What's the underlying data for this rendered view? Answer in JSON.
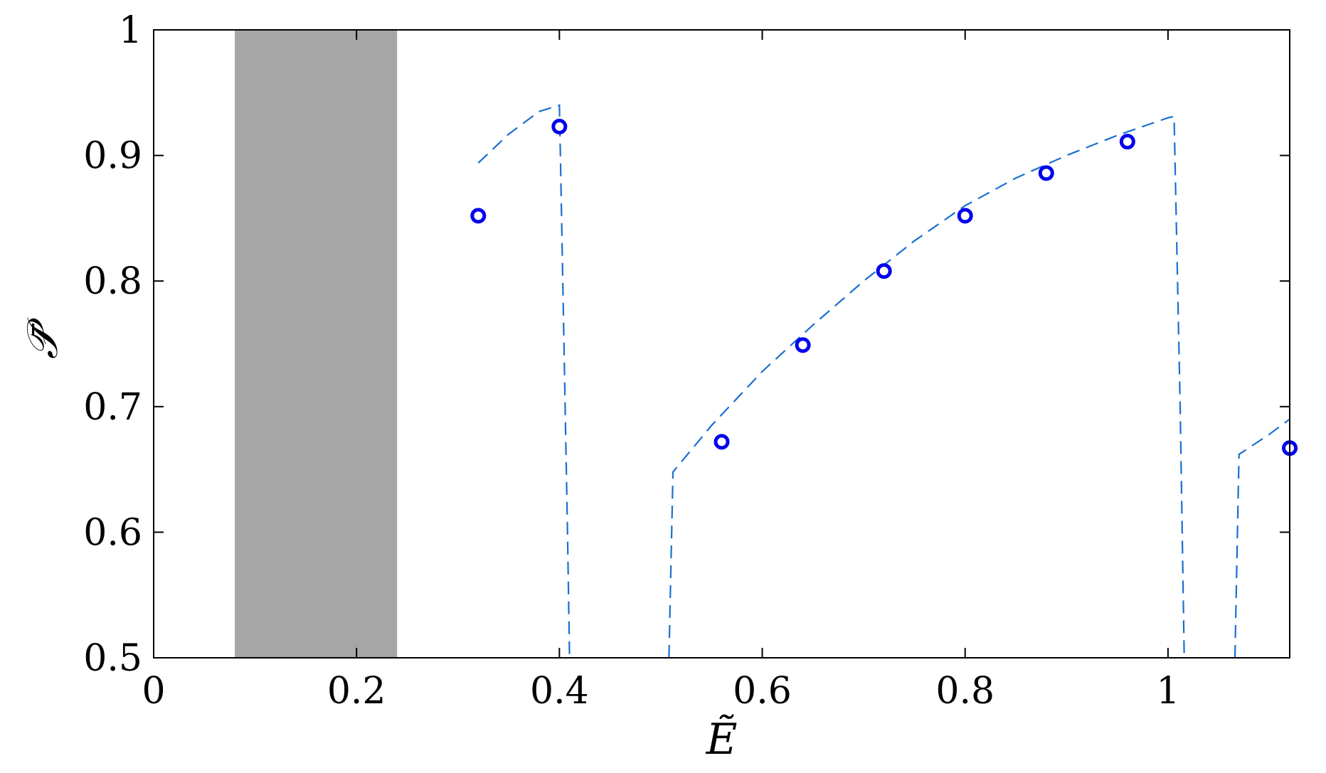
{
  "chart_data": {
    "type": "scatter",
    "title": "",
    "xlabel": "Ẽ",
    "ylabel": "𝒫̄",
    "xlim": [
      0,
      1.12
    ],
    "ylim": [
      0.5,
      1
    ],
    "xticks": [
      0,
      0.2,
      0.4,
      0.6,
      0.8,
      1
    ],
    "xtick_labels": [
      "0",
      "0.2",
      "0.4",
      "0.6",
      "0.8",
      "1"
    ],
    "yticks": [
      0.5,
      0.6,
      0.7,
      0.8,
      0.9,
      1
    ],
    "ytick_labels": [
      "0.5",
      "0.6",
      "0.7",
      "0.8",
      "0.9",
      "1"
    ],
    "grid": false,
    "shaded_region": {
      "x": [
        0.08,
        0.24
      ],
      "color": "#a6a6a6"
    },
    "series": [
      {
        "kind": "markers",
        "marker": "circle-open",
        "color": "#0000ee",
        "x": [
          0.32,
          0.4,
          0.56,
          0.64,
          0.72,
          0.8,
          0.88,
          0.96,
          1.12
        ],
        "y": [
          0.852,
          0.923,
          0.672,
          0.749,
          0.808,
          0.852,
          0.886,
          0.911,
          0.667
        ]
      },
      {
        "kind": "line",
        "dash": "dashed",
        "color": "#1a6fd0",
        "segments": [
          {
            "x": [
              0.32,
              0.35,
              0.38,
              0.4,
              0.401,
              0.408,
              0.41
            ],
            "y": [
              0.894,
              0.917,
              0.935,
              0.94,
              0.9,
              0.6,
              0.5
            ]
          },
          {
            "x": [
              0.508,
              0.512,
              0.55,
              0.6,
              0.65,
              0.7,
              0.75,
              0.8,
              0.85,
              0.9,
              0.95,
              1.0,
              1.006,
              1.012,
              1.016
            ],
            "y": [
              0.5,
              0.648,
              0.685,
              0.728,
              0.765,
              0.8,
              0.832,
              0.86,
              0.882,
              0.9,
              0.916,
              0.93,
              0.931,
              0.7,
              0.5
            ]
          },
          {
            "x": [
              1.066,
              1.07,
              1.1,
              1.12
            ],
            "y": [
              0.5,
              0.662,
              0.678,
              0.69
            ]
          }
        ]
      }
    ]
  }
}
